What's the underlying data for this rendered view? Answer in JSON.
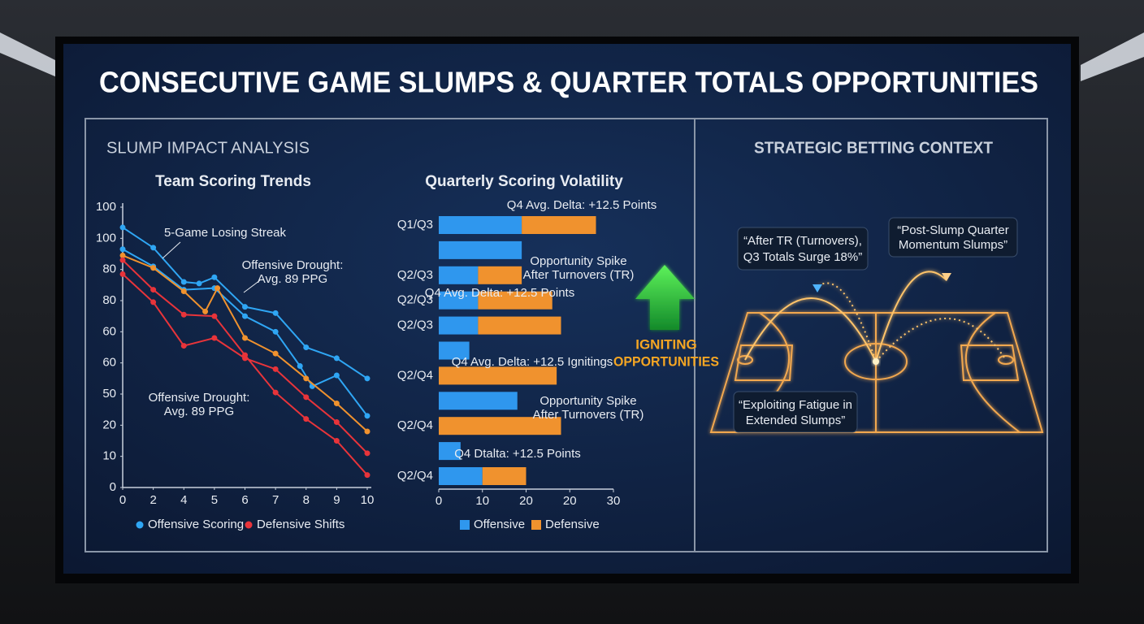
{
  "title": "CONSECUTIVE GAME SLUMPS & QUARTER TOTALS OPPORTUNITIES",
  "section": "SLUMP IMPACT ANALYSIS",
  "center": {
    "lines": [
      "IGNITING",
      "OPPORTUNITIES"
    ]
  },
  "context": {
    "heading": "STRATEGIC BETTING CONTEXT",
    "callouts": [
      [
        "“After TR (Turnovers),",
        "Q3 Totals Surge 18%”"
      ],
      [
        "“Post-Slump Quarter",
        "Momentum Slumps”"
      ],
      [
        "“Exploiting Fatigue in",
        "Extended Slumps”"
      ]
    ]
  },
  "chart_data": [
    {
      "type": "line",
      "title": "Team Scoring Trends",
      "xlim": [
        0,
        8
      ],
      "xticks": [
        0,
        {
          "value": 1,
          "label": "2"
        },
        {
          "value": 2,
          "label": "4"
        },
        {
          "value": 3,
          "label": "5"
        },
        {
          "value": 4,
          "label": "6"
        },
        {
          "value": 5,
          "label": "7"
        },
        {
          "value": 6,
          "label": "8"
        },
        {
          "value": 7,
          "label": "9"
        },
        {
          "value": 8,
          "label": "10"
        }
      ],
      "ylim": [
        0,
        90
      ],
      "yticks": [
        0,
        10,
        20,
        {
          "value": 30,
          "label": "50"
        },
        {
          "value": 40,
          "label": "60"
        },
        {
          "value": 50,
          "label": "60"
        },
        {
          "value": 60,
          "label": "80"
        },
        {
          "value": 70,
          "label": "80"
        },
        {
          "value": 80,
          "label": "100"
        },
        {
          "value": 90,
          "label": "100"
        }
      ],
      "series": [
        {
          "name": "Offensive Scoring",
          "color": "#2fa6f4",
          "x": [
            0,
            1,
            2,
            2.5,
            3,
            4,
            5,
            6,
            7,
            8
          ],
          "values": [
            83.5,
            77,
            66,
            65.5,
            67.5,
            58,
            56,
            45,
            41.5,
            35
          ]
        },
        {
          "color": "#2fa6f4",
          "x": [
            0,
            1,
            2,
            3,
            4,
            5,
            5.8,
            6.2,
            7,
            8
          ],
          "values": [
            76.5,
            71,
            63.5,
            64,
            55,
            50,
            39,
            32.5,
            36,
            23
          ]
        },
        {
          "color": "#f0922e",
          "x": [
            0,
            1,
            2,
            2.7,
            3.1,
            4,
            5,
            6,
            7,
            8
          ],
          "values": [
            74.5,
            70.5,
            63,
            56.5,
            64,
            48,
            43,
            35,
            27,
            18
          ]
        },
        {
          "name": "Defensive Shifts",
          "color": "#e8343a",
          "x": [
            0,
            1,
            2,
            3,
            4,
            5,
            6,
            7,
            8
          ],
          "values": [
            73,
            63.5,
            55.5,
            55,
            42.5,
            30.5,
            22,
            15,
            4
          ]
        },
        {
          "color": "#e8343a",
          "x": [
            0,
            1,
            2,
            3,
            4,
            5,
            6,
            7,
            8
          ],
          "values": [
            68.5,
            59.5,
            45.5,
            48,
            41.5,
            38,
            29,
            21,
            11
          ]
        }
      ],
      "annotations": [
        [
          "5-Game Losing Streak"
        ],
        [
          "Offensive Drought:",
          "Avg. 89 PPG"
        ],
        [
          "Offensive Drought:",
          "Avg. 89 PPG"
        ]
      ]
    },
    {
      "type": "bar",
      "orientation": "horizontal",
      "stacked": true,
      "title": "Quarterly Scoring Volatility",
      "categories": [
        "Q1/Q3",
        null,
        "Q2/Q3",
        "Q2/Q3",
        "Q2/Q3",
        null,
        "Q2/Q4",
        null,
        "Q2/Q4",
        null,
        "Q2/Q4"
      ],
      "xlim": [
        0,
        40
      ],
      "xticks": [
        0,
        10,
        20,
        {
          "value": 30,
          "label": "20"
        },
        {
          "value": 40,
          "label": "30"
        }
      ],
      "series": [
        {
          "name": "Offensive",
          "color": "#2f97ee",
          "values": [
            19,
            19,
            9,
            9,
            9,
            7,
            0,
            18,
            0,
            5,
            10
          ]
        },
        {
          "name": "Defensive",
          "color": "#f0922e",
          "values": [
            17,
            0,
            10,
            17,
            19,
            0,
            27,
            0,
            28,
            0,
            10
          ]
        }
      ],
      "annotations": [
        [
          "Q4 Avg. Delta: +12.5 Points"
        ],
        [
          "Opportunity Spike",
          "After Turnovers (TR)"
        ],
        [
          "Q4 Avg. Delta: +12.5 Points"
        ],
        [
          "Q4 Avg. Delta: +12.5 Ignitings"
        ],
        [
          "Opportunity Spike",
          "After Turnovers (TR)"
        ],
        [
          "Q4 Dtalta: +12.5 Points"
        ]
      ]
    }
  ]
}
